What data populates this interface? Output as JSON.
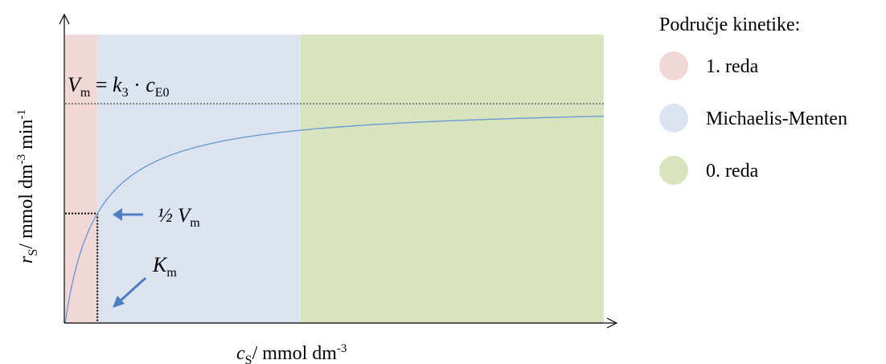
{
  "chart_data": {
    "type": "line",
    "title": "",
    "xlabel": {
      "var": "c",
      "sub": "S",
      "unit": "/ mmol dm",
      "sup": "-3"
    },
    "ylabel": {
      "var": "r",
      "sub": "S",
      "unit": "/ mmol dm",
      "sup1": "-3",
      "mid": " min",
      "sup2": "-1"
    },
    "xlim": [
      0,
      100
    ],
    "ylim": [
      0,
      100
    ],
    "Vmax": 76,
    "Km": 6,
    "regions": [
      {
        "name": "1. reda",
        "x0": 0,
        "x1": 6,
        "color": "#f2d7d7"
      },
      {
        "name": "Michaelis-Menten",
        "x0": 6,
        "x1": 43.7,
        "color": "#dbe4f0"
      },
      {
        "name": "0. reda",
        "x0": 43.7,
        "x1": 100,
        "color": "#d7e4bd"
      }
    ],
    "series": [
      {
        "color": "#6d9bd2",
        "equation": "Michaelis-Menten"
      }
    ],
    "annotations": {
      "vm_eq": {
        "V": "V",
        "Vsub": "m",
        "eq": " = ",
        "k": "k",
        "ksub": "3",
        "dot": " · ",
        "c": "c",
        "csub": "E0"
      },
      "half": {
        "frac": "½ ",
        "V": "V",
        "sub": "m"
      },
      "km": {
        "K": "K",
        "sub": "m"
      }
    },
    "legend": {
      "title": "Područje kinetike:",
      "placement": "right",
      "items": [
        "1. reda",
        "Michaelis-Menten",
        "0. reda"
      ]
    },
    "grid": false,
    "colors": {
      "axis": "#000000",
      "arrow": "#4f7fbf",
      "dotted": "#7f7f7f"
    }
  }
}
